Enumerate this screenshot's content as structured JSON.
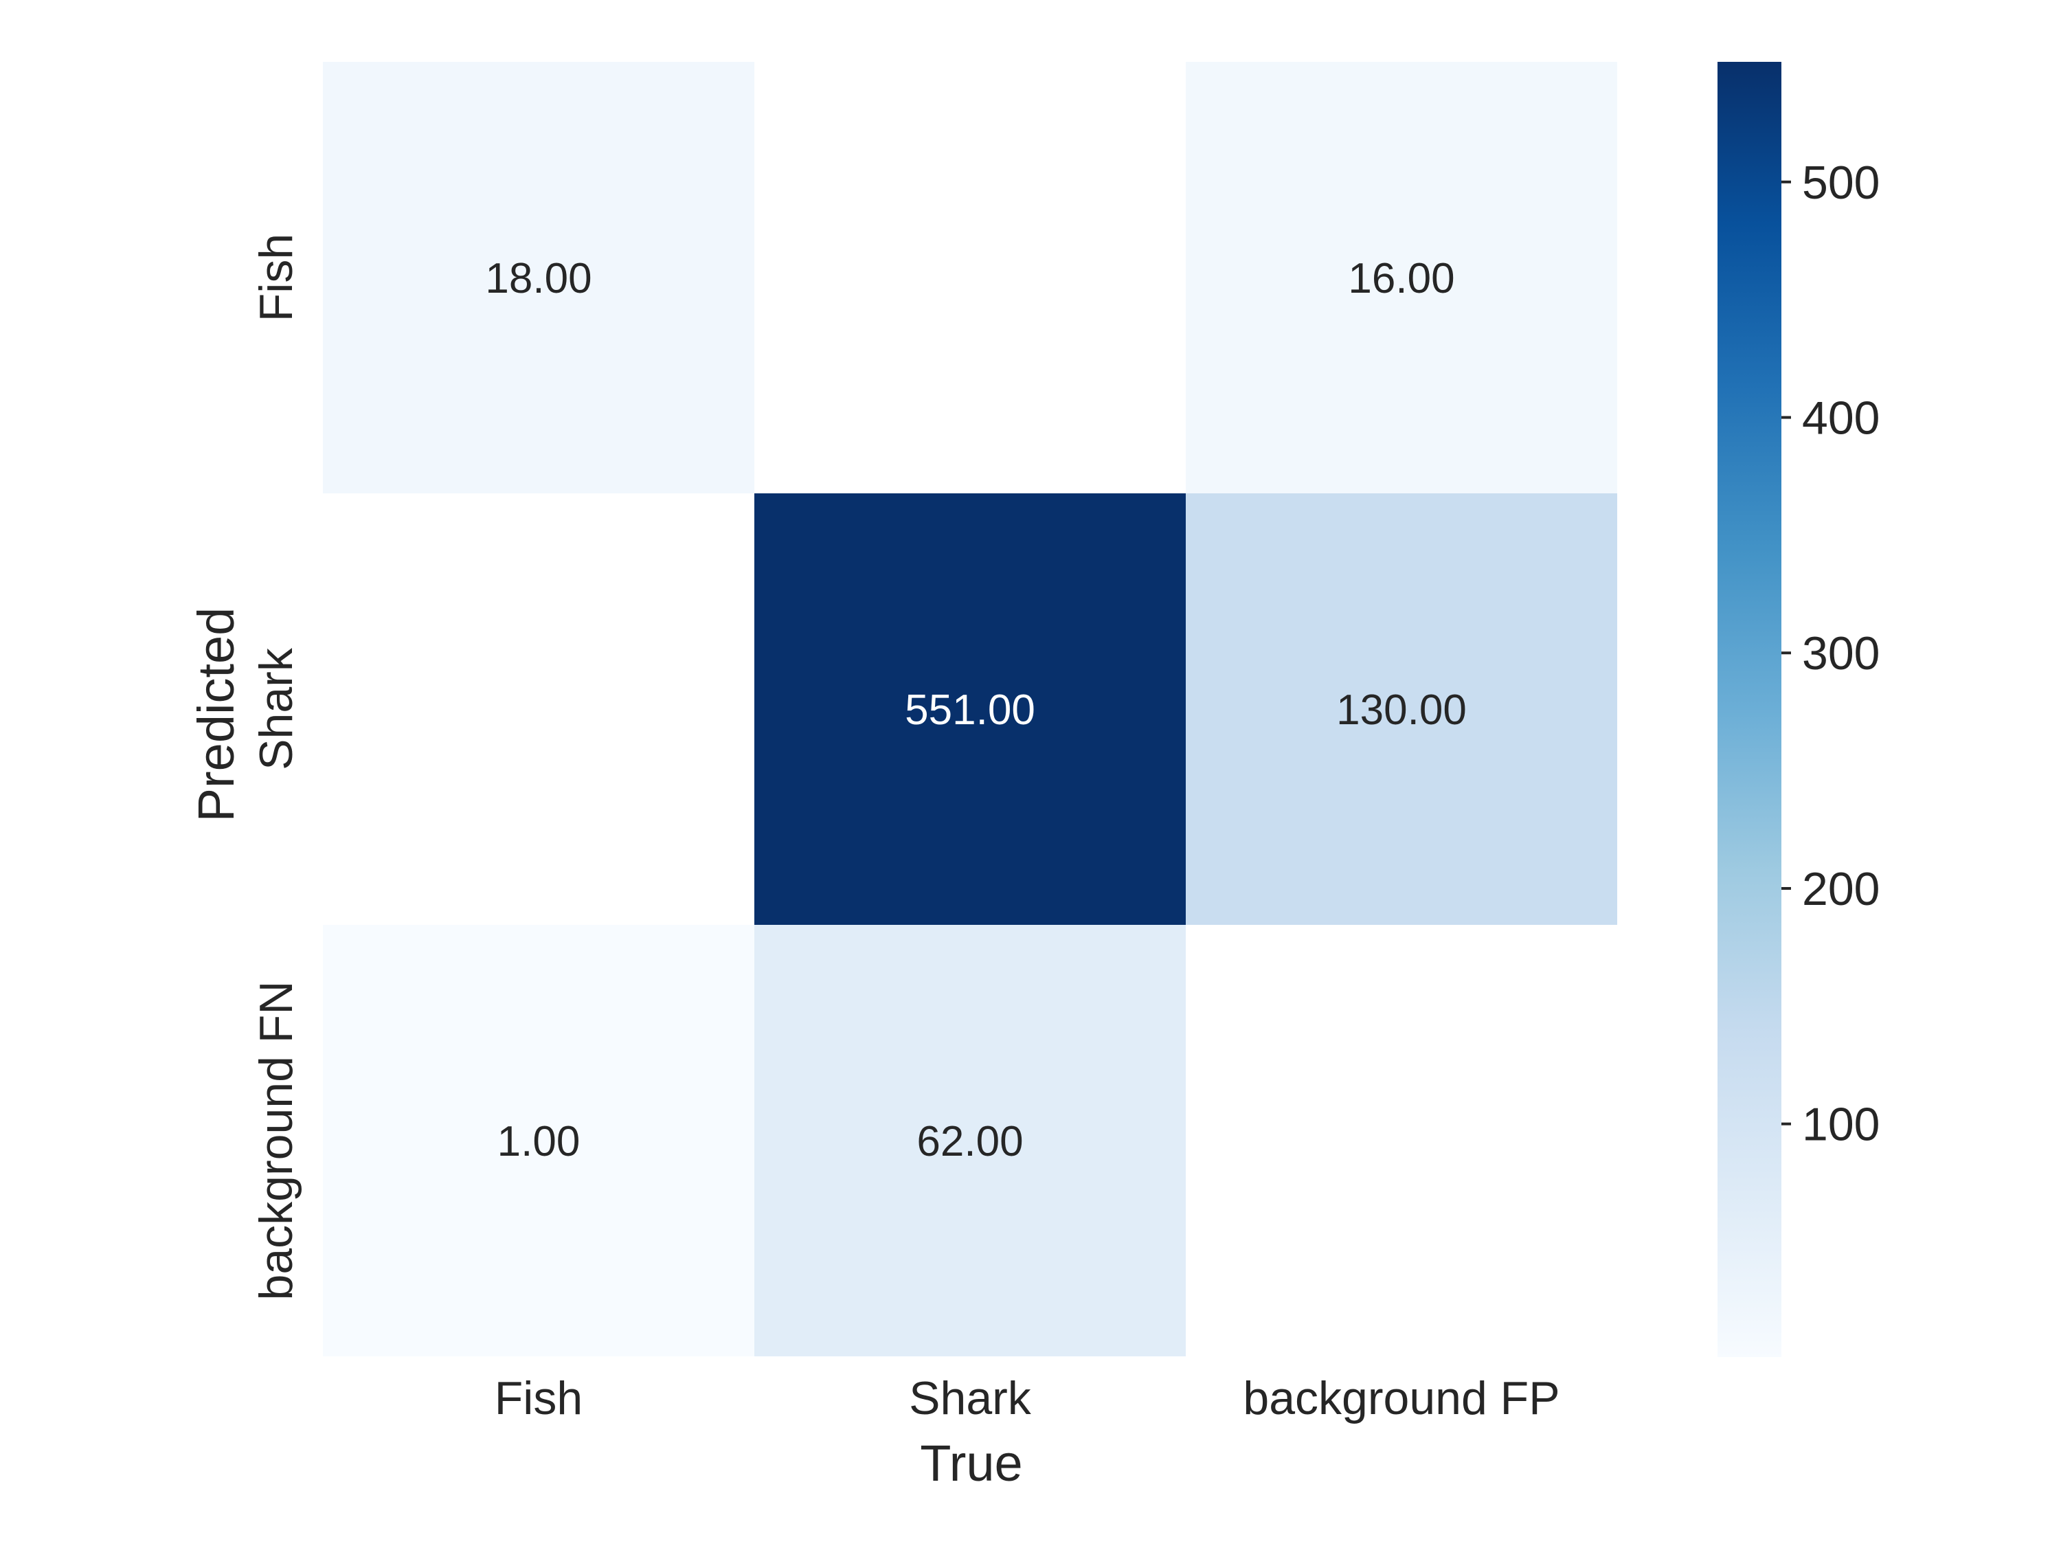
{
  "chart_data": {
    "type": "heatmap",
    "title": "",
    "xlabel": "True",
    "ylabel": "Predicted",
    "x_categories": [
      "Fish",
      "Shark",
      "background FP"
    ],
    "y_categories": [
      "Fish",
      "Shark",
      "background FN"
    ],
    "values": [
      [
        18.0,
        null,
        16.0
      ],
      [
        null,
        551.0,
        130.0
      ],
      [
        1.0,
        62.0,
        null
      ]
    ],
    "cell_labels": [
      [
        "18.00",
        "",
        "16.00"
      ],
      [
        "",
        "551.00",
        "130.00"
      ],
      [
        "1.00",
        "62.00",
        ""
      ]
    ],
    "colorbar": {
      "ticks": [
        100,
        200,
        300,
        400,
        500
      ],
      "tick_labels": [
        "100",
        "200",
        "300",
        "400",
        "500"
      ],
      "range": [
        1,
        551
      ],
      "colormap": "Blues",
      "stops": [
        "#f7fbff",
        "#deebf7",
        "#c6dbef",
        "#9ecae1",
        "#6baed6",
        "#4292c6",
        "#2171b5",
        "#08519c",
        "#08306b"
      ]
    },
    "grid": false
  }
}
